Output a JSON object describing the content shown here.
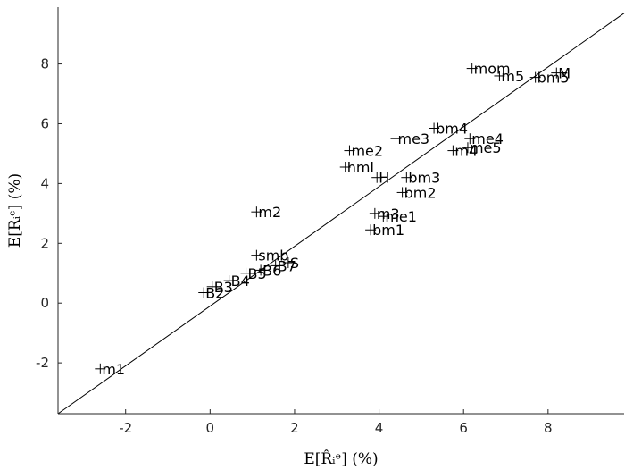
{
  "chart_data": {
    "type": "scatter",
    "xlabel": "E[R̂ᵢᵉ] (%)",
    "ylabel": "E[Rᵢᵉ] (%)",
    "xlim": [
      -3.6,
      9.8
    ],
    "ylim": [
      -3.7,
      9.9
    ],
    "xticks": [
      -2,
      0,
      2,
      4,
      6,
      8
    ],
    "yticks": [
      -2,
      0,
      2,
      4,
      6,
      8
    ],
    "grid": false,
    "reference_line": {
      "type": "45-degree",
      "from": [
        -3.6,
        -3.7
      ],
      "to": [
        9.8,
        9.7
      ]
    },
    "points": [
      {
        "label": "mom",
        "x": 6.2,
        "y": 7.85
      },
      {
        "label": "m5",
        "x": 6.85,
        "y": 7.6
      },
      {
        "label": "M",
        "x": 8.2,
        "y": 7.7
      },
      {
        "label": "bm5",
        "x": 7.7,
        "y": 7.55
      },
      {
        "label": "bm4",
        "x": 5.3,
        "y": 5.85
      },
      {
        "label": "me3",
        "x": 4.4,
        "y": 5.5
      },
      {
        "label": "me4",
        "x": 6.15,
        "y": 5.5
      },
      {
        "label": "me5",
        "x": 6.1,
        "y": 5.2
      },
      {
        "label": "m4",
        "x": 5.75,
        "y": 5.1
      },
      {
        "label": "me2",
        "x": 3.3,
        "y": 5.1
      },
      {
        "label": "hml",
        "x": 3.2,
        "y": 4.55
      },
      {
        "label": "H",
        "x": 3.95,
        "y": 4.2
      },
      {
        "label": "bm3",
        "x": 4.65,
        "y": 4.2
      },
      {
        "label": "bm2",
        "x": 4.55,
        "y": 3.7
      },
      {
        "label": "m2",
        "x": 1.1,
        "y": 3.05
      },
      {
        "label": "m3",
        "x": 3.9,
        "y": 3.0
      },
      {
        "label": "me1",
        "x": 4.1,
        "y": 2.9
      },
      {
        "label": "bm1",
        "x": 3.8,
        "y": 2.45
      },
      {
        "label": "smb",
        "x": 1.1,
        "y": 1.6
      },
      {
        "label": "S",
        "x": 1.85,
        "y": 1.35
      },
      {
        "label": "B7",
        "x": 1.55,
        "y": 1.25
      },
      {
        "label": "B6",
        "x": 1.2,
        "y": 1.1
      },
      {
        "label": "B5",
        "x": 0.85,
        "y": 1.0
      },
      {
        "label": "B4",
        "x": 0.45,
        "y": 0.75
      },
      {
        "label": "B3",
        "x": 0.05,
        "y": 0.55
      },
      {
        "label": "B2",
        "x": -0.15,
        "y": 0.35
      },
      {
        "label": "m1",
        "x": -2.6,
        "y": -2.2
      }
    ]
  }
}
